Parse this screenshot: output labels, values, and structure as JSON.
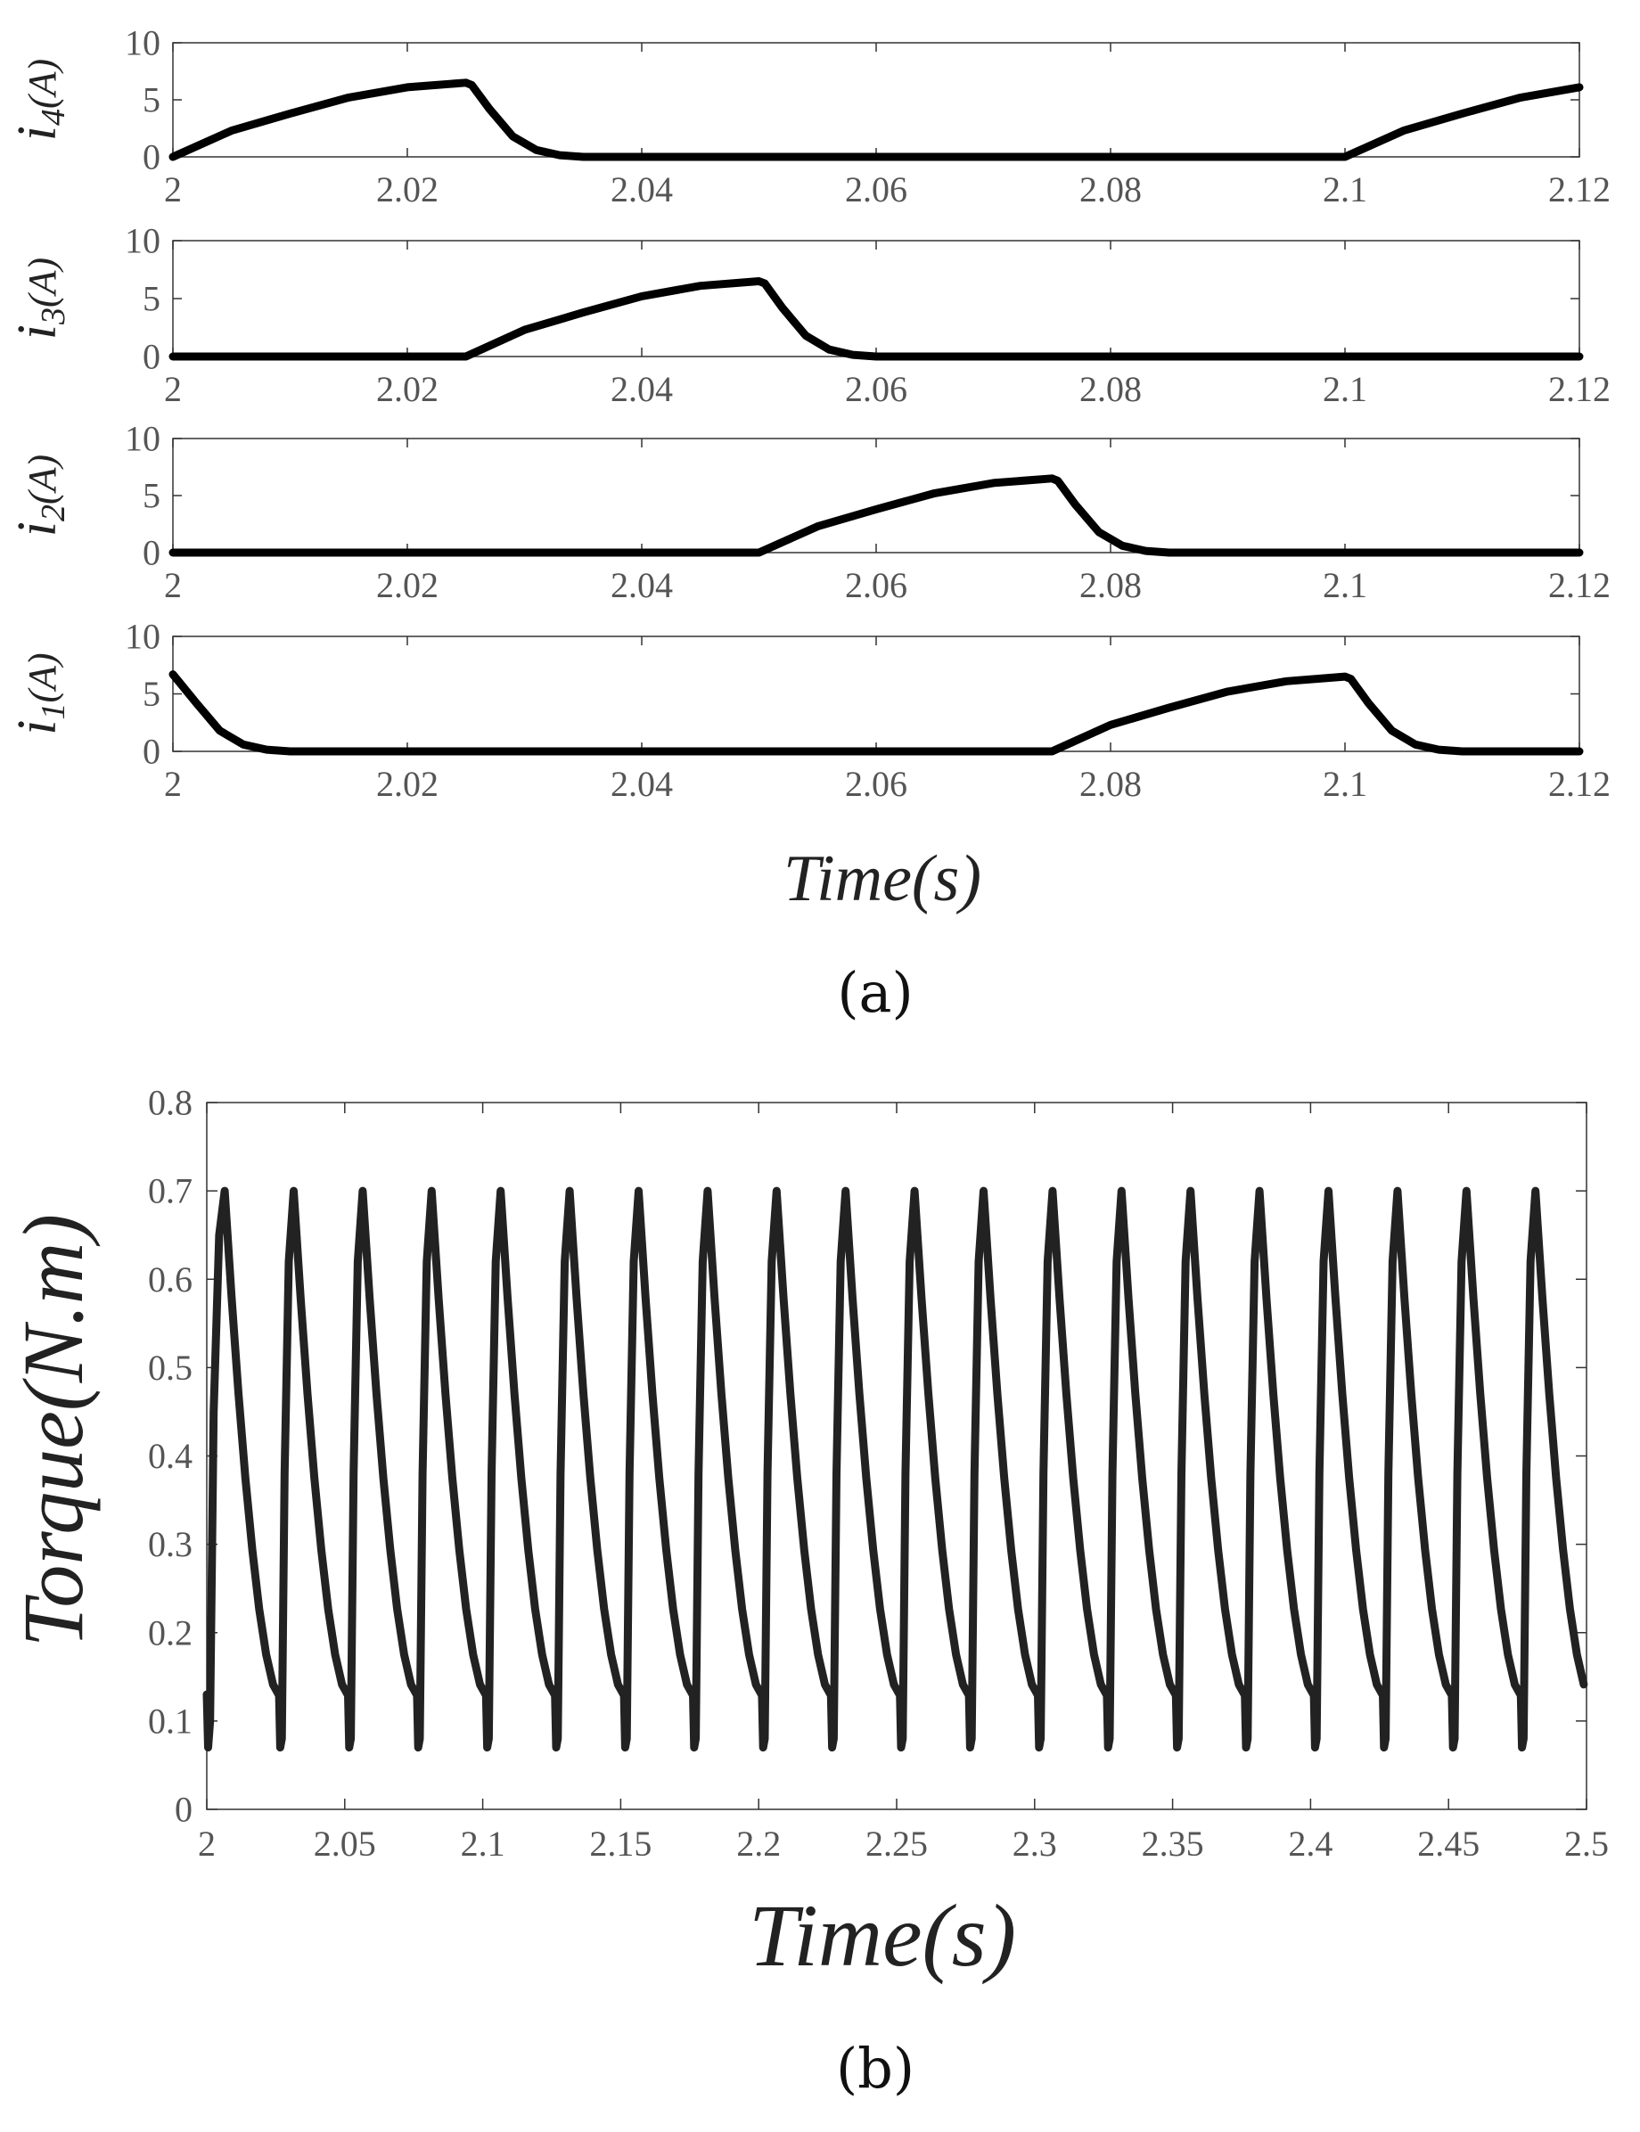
{
  "figure": {
    "caption_a": "(a)",
    "caption_b": "(b)"
  },
  "chart_data": [
    {
      "type": "line",
      "id": "i4",
      "ylabel_main": "i",
      "ylabel_sub": "4",
      "ylabel_unit": "(A)",
      "xlim": [
        2,
        2.12
      ],
      "ylim": [
        0,
        10
      ],
      "xticks": [
        "2",
        "2.02",
        "2.04",
        "2.06",
        "2.08",
        "2.1",
        "2.12"
      ],
      "yticks": [
        "0",
        "5",
        "10"
      ],
      "series": [
        {
          "name": "i4",
          "x": [
            2.0,
            2.005,
            2.01,
            2.015,
            2.02,
            2.025,
            2.0255,
            2.027,
            2.029,
            2.031,
            2.033,
            2.035,
            2.04,
            2.06,
            2.08,
            2.1,
            2.105,
            2.11,
            2.115,
            2.12
          ],
          "y": [
            0,
            2.3,
            3.8,
            5.2,
            6.1,
            6.5,
            6.3,
            4.2,
            1.8,
            0.6,
            0.15,
            0,
            0,
            0,
            0,
            0,
            2.3,
            3.8,
            5.2,
            6.1
          ]
        }
      ]
    },
    {
      "type": "line",
      "id": "i3",
      "ylabel_main": "i",
      "ylabel_sub": "3",
      "ylabel_unit": "(A)",
      "xlim": [
        2,
        2.12
      ],
      "ylim": [
        0,
        10
      ],
      "xticks": [
        "2",
        "2.02",
        "2.04",
        "2.06",
        "2.08",
        "2.1",
        "2.12"
      ],
      "yticks": [
        "0",
        "5",
        "10"
      ],
      "series": [
        {
          "name": "i3",
          "x": [
            2.0,
            2.025,
            2.03,
            2.035,
            2.04,
            2.045,
            2.05,
            2.0505,
            2.052,
            2.054,
            2.056,
            2.058,
            2.06,
            2.08,
            2.1,
            2.12
          ],
          "y": [
            0,
            0,
            2.3,
            3.8,
            5.2,
            6.1,
            6.5,
            6.3,
            4.2,
            1.8,
            0.6,
            0.15,
            0,
            0,
            0,
            0
          ]
        }
      ]
    },
    {
      "type": "line",
      "id": "i2",
      "ylabel_main": "i",
      "ylabel_sub": "2",
      "ylabel_unit": "(A)",
      "xlim": [
        2,
        2.12
      ],
      "ylim": [
        0,
        10
      ],
      "xticks": [
        "2",
        "2.02",
        "2.04",
        "2.06",
        "2.08",
        "2.1",
        "2.12"
      ],
      "yticks": [
        "0",
        "5",
        "10"
      ],
      "series": [
        {
          "name": "i2",
          "x": [
            2.0,
            2.05,
            2.055,
            2.06,
            2.065,
            2.07,
            2.075,
            2.0755,
            2.077,
            2.079,
            2.081,
            2.083,
            2.085,
            2.1,
            2.12
          ],
          "y": [
            0,
            0,
            2.3,
            3.8,
            5.2,
            6.1,
            6.5,
            6.3,
            4.2,
            1.8,
            0.6,
            0.15,
            0,
            0,
            0
          ]
        }
      ]
    },
    {
      "type": "line",
      "id": "i1",
      "ylabel_main": "i",
      "ylabel_sub": "1",
      "ylabel_unit": "(A)",
      "xlim": [
        2,
        2.12
      ],
      "ylim": [
        0,
        10
      ],
      "xticks": [
        "2",
        "2.02",
        "2.04",
        "2.06",
        "2.08",
        "2.1",
        "2.12"
      ],
      "yticks": [
        "0",
        "5",
        "10"
      ],
      "series": [
        {
          "name": "i1",
          "x": [
            2.0,
            2.002,
            2.004,
            2.006,
            2.008,
            2.01,
            2.075,
            2.08,
            2.085,
            2.09,
            2.095,
            2.1,
            2.1005,
            2.102,
            2.104,
            2.106,
            2.108,
            2.11,
            2.12
          ],
          "y": [
            6.7,
            4.2,
            1.8,
            0.6,
            0.15,
            0,
            0,
            2.3,
            3.8,
            5.2,
            6.1,
            6.5,
            6.3,
            4.2,
            1.8,
            0.6,
            0.15,
            0,
            0
          ]
        }
      ]
    },
    {
      "type": "line",
      "id": "torque",
      "title": "",
      "xlabel": "Time(s)",
      "ylabel": "Torque(N.m)",
      "xlim": [
        2,
        2.5
      ],
      "ylim": [
        0,
        0.8
      ],
      "xticks": [
        "2",
        "2.05",
        "2.1",
        "2.15",
        "2.2",
        "2.25",
        "2.3",
        "2.35",
        "2.4",
        "2.45",
        "2.5"
      ],
      "yticks": [
        "0",
        "0.1",
        "0.2",
        "0.3",
        "0.4",
        "0.5",
        "0.6",
        "0.7",
        "0.8"
      ],
      "period": 0.025,
      "first_peak_time": 2.0065,
      "peak": 0.7,
      "trough": 0.07,
      "pre_drop_level": 0.13,
      "series": [
        {
          "name": "Torque",
          "description": "periodic sawtooth ripple, 20 peaks between 2 and 2.5 s"
        }
      ]
    }
  ],
  "shared_xlabel_a": "Time(s)"
}
